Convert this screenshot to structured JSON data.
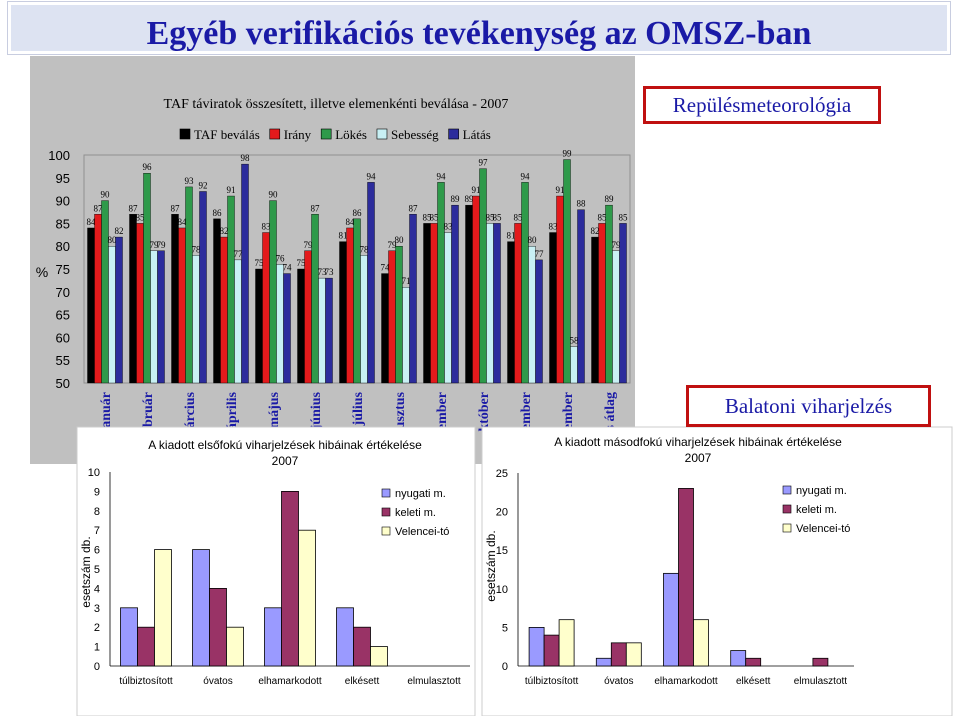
{
  "header": {
    "title": "Egyéb verifikációs tevékenység az OMSZ-ban"
  },
  "badges": {
    "rm": "Repülésmeteorológia",
    "balaton": "Balatoni viharjelzés"
  },
  "colors": {
    "TAF beválás": "#000000",
    "Irány": "#e31a1c",
    "Lökés": "#2e9a4a",
    "Sebesség": "#c8f0f4",
    "Látás": "#2c2c9c",
    "nyugati": "#9a9aff",
    "keleti": "#993366",
    "velencei": "#ffffcc",
    "title": "#1a1aa6",
    "accent": "#c01010"
  },
  "chart_data": [
    {
      "type": "bar",
      "title": "TAF táviratok összesített, illetve elemenkénti beválása - 2007",
      "ylabel": "%",
      "ylim": [
        50,
        100
      ],
      "yticks": [
        "50",
        "55",
        "60",
        "65",
        "70",
        "75",
        "80",
        "85",
        "90",
        "95",
        "100"
      ],
      "categories": [
        "január",
        "február",
        "március",
        "április",
        "május",
        "június",
        "július",
        "augusztus",
        "szeptember",
        "október",
        "november",
        "december",
        "éves átlag"
      ],
      "category_display": [
        "január",
        "ebruár",
        "árcius",
        "április",
        "május",
        "június",
        "július",
        "gusztus",
        "tember",
        "október",
        "ember",
        "ember",
        "s átlag"
      ],
      "legend": "top",
      "series": [
        {
          "name": "TAF beválás",
          "values": [
            84,
            87,
            87,
            86,
            75,
            75,
            81,
            74,
            85,
            89,
            81,
            83,
            82
          ]
        },
        {
          "name": "Irány",
          "values": [
            87,
            85,
            84,
            82,
            83,
            79,
            84,
            79,
            85,
            91,
            85,
            91,
            85
          ]
        },
        {
          "name": "Lökés",
          "values": [
            90,
            96,
            93,
            91,
            90,
            87,
            86,
            80,
            94,
            97,
            94,
            99,
            89
          ]
        },
        {
          "name": "Sebesség",
          "values": [
            80,
            79,
            78,
            77,
            76,
            73,
            78,
            71,
            83,
            85,
            80,
            58,
            79
          ]
        },
        {
          "name": "Látás",
          "values": [
            82,
            79,
            92,
            98,
            74,
            73,
            94,
            87,
            89,
            85,
            77,
            88,
            85
          ]
        }
      ]
    },
    {
      "type": "bar",
      "title": "A kiadott elsőfokú viharjelzések hibáinak értékelése",
      "subtitle": "2007",
      "ylabel": "esetszám db.",
      "ylim": [
        0,
        10
      ],
      "yticks": [
        "0",
        "1",
        "2",
        "3",
        "4",
        "5",
        "6",
        "7",
        "8",
        "9",
        "10"
      ],
      "categories": [
        "túlbiztosított",
        "óvatos",
        "elhamarkodott",
        "elkésett",
        "elmulasztott"
      ],
      "legend": "top-right",
      "series": [
        {
          "name": "nyugati m.",
          "values": [
            3,
            6,
            3,
            3,
            0
          ]
        },
        {
          "name": "keleti m.",
          "values": [
            2,
            4,
            9,
            2,
            0
          ]
        },
        {
          "name": "Velencei-tó",
          "values": [
            6,
            2,
            7,
            1,
            0
          ]
        }
      ]
    },
    {
      "type": "bar",
      "title": "A kiadott másodfokú viharjelzések hibáinak értékelése",
      "subtitle": "2007",
      "ylabel": "esetszám db.",
      "ylim": [
        0,
        25
      ],
      "yticks": [
        "0",
        "5",
        "10",
        "15",
        "20",
        "25"
      ],
      "categories": [
        "túlbiztosított",
        "óvatos",
        "elhamarkodott",
        "elkésett",
        "elmulasztott"
      ],
      "legend": "top-right",
      "series": [
        {
          "name": "nyugati m.",
          "values": [
            5,
            1,
            12,
            2,
            0
          ]
        },
        {
          "name": "keleti m.",
          "values": [
            4,
            3,
            23,
            1,
            1
          ]
        },
        {
          "name": "Velencei-tó",
          "values": [
            6,
            3,
            6,
            0,
            0
          ]
        }
      ]
    }
  ]
}
